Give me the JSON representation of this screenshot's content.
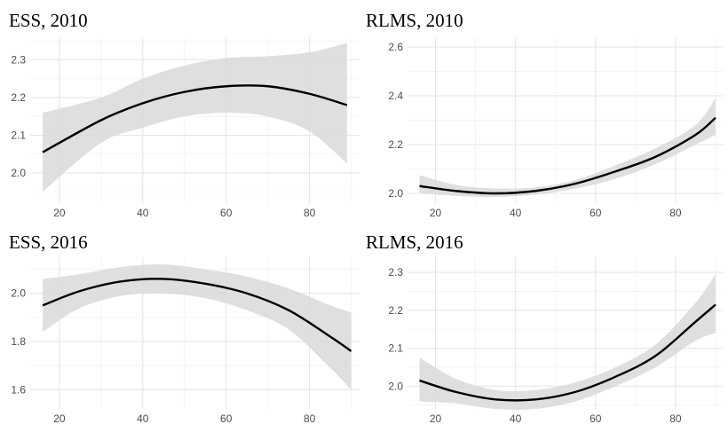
{
  "chart_data": [
    {
      "type": "line",
      "title": "ESS, 2010",
      "xlim": [
        13,
        92
      ],
      "ylim": [
        1.92,
        2.36
      ],
      "x_ticks": [
        20,
        40,
        60,
        80
      ],
      "y_ticks": [
        2.0,
        2.1,
        2.2,
        2.3
      ],
      "x_tick_labels": [
        "20",
        "40",
        "60",
        "80"
      ],
      "y_tick_labels": [
        "2.0",
        "2.1",
        "2.2",
        "2.3"
      ],
      "grid": true,
      "x": [
        16,
        30,
        40,
        50,
        60,
        70,
        80,
        89
      ],
      "y": [
        2.055,
        2.14,
        2.185,
        2.215,
        2.23,
        2.23,
        2.21,
        2.18
      ],
      "ci_lower": [
        1.95,
        2.08,
        2.12,
        2.15,
        2.16,
        2.15,
        2.11,
        2.025
      ],
      "ci_upper": [
        2.16,
        2.2,
        2.25,
        2.285,
        2.305,
        2.31,
        2.32,
        2.345
      ]
    },
    {
      "type": "line",
      "title": "RLMS, 2010",
      "xlim": [
        13,
        92
      ],
      "ylim": [
        1.96,
        2.64
      ],
      "x_ticks": [
        20,
        40,
        60,
        80
      ],
      "y_ticks": [
        2.0,
        2.2,
        2.4,
        2.6
      ],
      "x_tick_labels": [
        "20",
        "40",
        "60",
        "80"
      ],
      "y_tick_labels": [
        "2.0",
        "2.2",
        "2.4",
        "2.6"
      ],
      "grid": true,
      "x": [
        16,
        25,
        35,
        45,
        55,
        65,
        75,
        85,
        90
      ],
      "y": [
        2.03,
        2.01,
        2.0,
        2.01,
        2.04,
        2.09,
        2.15,
        2.24,
        2.31
      ],
      "ci_lower": [
        2.0,
        1.99,
        1.985,
        1.995,
        2.02,
        2.06,
        2.12,
        2.2,
        2.24
      ],
      "ci_upper": [
        2.075,
        2.035,
        2.02,
        2.025,
        2.055,
        2.115,
        2.185,
        2.28,
        2.39
      ]
    },
    {
      "type": "line",
      "title": "ESS, 2016",
      "xlim": [
        13,
        92
      ],
      "ylim": [
        1.52,
        2.15
      ],
      "x_ticks": [
        20,
        40,
        60,
        80
      ],
      "y_ticks": [
        1.6,
        1.8,
        2.0
      ],
      "x_tick_labels": [
        "20",
        "40",
        "60",
        "80"
      ],
      "y_tick_labels": [
        "1.6",
        "1.8",
        "2.0"
      ],
      "grid": true,
      "x": [
        16,
        25,
        35,
        45,
        55,
        65,
        75,
        85,
        90
      ],
      "y": [
        1.95,
        2.01,
        2.05,
        2.06,
        2.04,
        2.0,
        1.93,
        1.82,
        1.76
      ],
      "ci_lower": [
        1.84,
        1.94,
        1.99,
        2.0,
        1.98,
        1.93,
        1.85,
        1.69,
        1.6
      ],
      "ci_upper": [
        2.06,
        2.08,
        2.11,
        2.12,
        2.1,
        2.07,
        2.02,
        1.95,
        1.92
      ]
    },
    {
      "type": "line",
      "title": "RLMS, 2016",
      "xlim": [
        13,
        92
      ],
      "ylim": [
        1.94,
        2.34
      ],
      "x_ticks": [
        20,
        40,
        60,
        80
      ],
      "y_ticks": [
        2.0,
        2.1,
        2.2,
        2.3
      ],
      "x_tick_labels": [
        "20",
        "40",
        "60",
        "80"
      ],
      "y_tick_labels": [
        "2.0",
        "2.1",
        "2.2",
        "2.3"
      ],
      "grid": true,
      "x": [
        16,
        25,
        35,
        45,
        55,
        65,
        75,
        85,
        90
      ],
      "y": [
        2.015,
        1.985,
        1.965,
        1.965,
        1.985,
        2.025,
        2.08,
        2.17,
        2.215
      ],
      "ci_lower": [
        1.96,
        1.955,
        1.94,
        1.94,
        1.96,
        2.0,
        2.05,
        2.12,
        2.14
      ],
      "ci_upper": [
        2.075,
        2.02,
        1.99,
        1.99,
        2.01,
        2.05,
        2.11,
        2.22,
        2.295
      ]
    }
  ]
}
